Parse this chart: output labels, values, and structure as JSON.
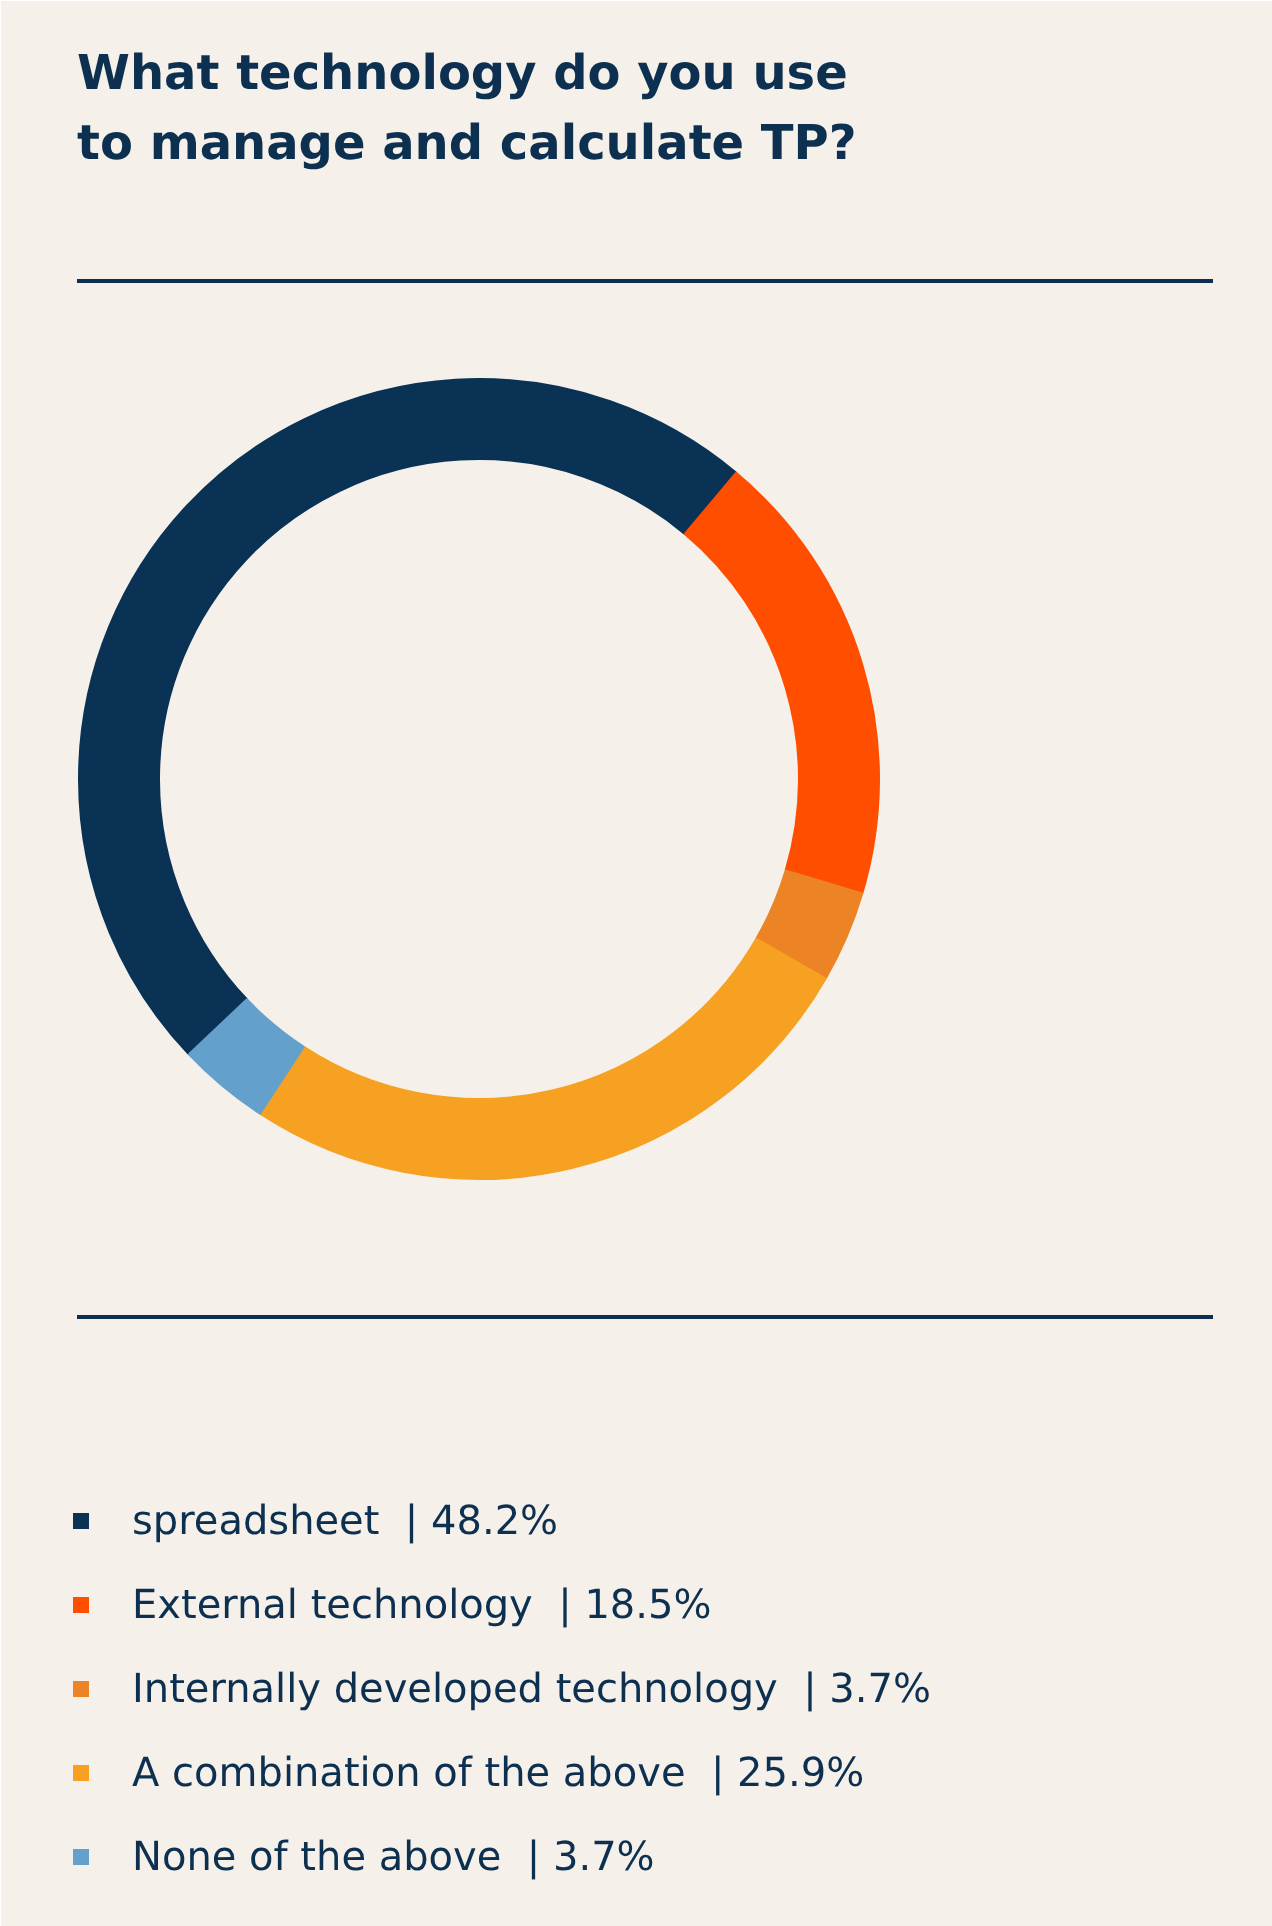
{
  "chart_data": {
    "type": "donut",
    "title": "What technology do you use\nto manage and calculate TP?",
    "categories": [
      "spreadsheet",
      "External technology",
      "Internally developed technology",
      "A combination of the above",
      "None of the above"
    ],
    "values": [
      48.2,
      18.5,
      3.7,
      25.9,
      3.7
    ],
    "value_labels": [
      "| 48.2%",
      "| 18.5%",
      "| 3.7%",
      "| 25.9%",
      "| 3.7%"
    ],
    "colors": [
      "#0a3255",
      "#ff4e00",
      "#ec8426",
      "#f7a122",
      "#64a0cc"
    ],
    "legend": "bottom"
  }
}
